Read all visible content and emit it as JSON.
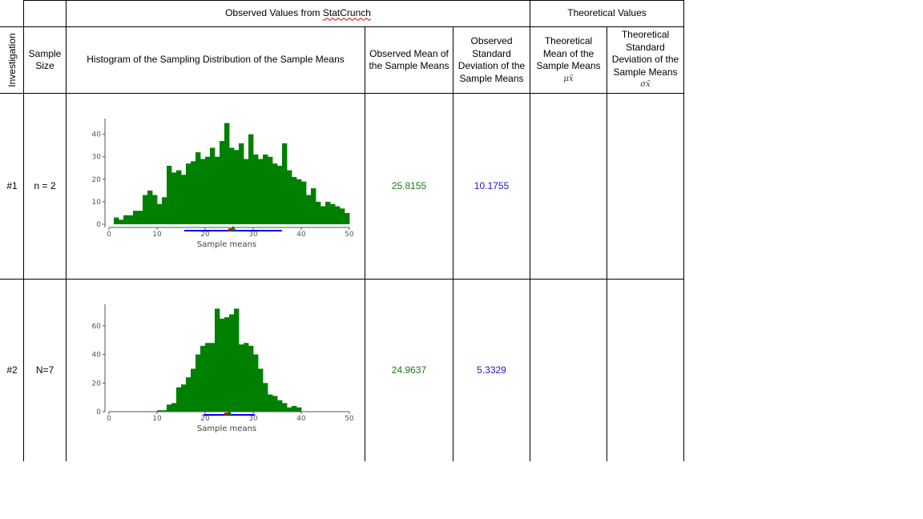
{
  "header": {
    "observed_group": "Observed Values from StatCrunch",
    "observed_group_pre": "Observed Values from ",
    "observed_group_word": "StatCrunch",
    "theoretical_group": "Theoretical Values"
  },
  "columns": {
    "investigation": "Investigation",
    "sample_size": "Sample Size",
    "histogram": "Histogram of the Sampling Distribution of the Sample Means",
    "observed_mean": "Observed Mean of the Sample Means",
    "observed_sd": "Observed Standard Deviation of the Sample Means",
    "theoretical_mean": "Theoretical Mean of the Sample Means",
    "theoretical_mean_symbol": "μx̄",
    "theoretical_sd": "Theoretical Standard Deviation of the Sample Means",
    "theoretical_sd_symbol": "σx̄"
  },
  "rows": [
    {
      "investigation": "#1",
      "sample_size": "n = 2",
      "observed_mean": "25.8155",
      "observed_sd": "10.1755",
      "theoretical_mean": "",
      "theoretical_sd": ""
    },
    {
      "investigation": "#2",
      "sample_size": "N=7",
      "observed_mean": "24.9637",
      "observed_sd": "5.3329",
      "theoretical_mean": "",
      "theoretical_sd": ""
    }
  ],
  "colors": {
    "bar": "#008000",
    "mean_text": "#1a7a1a",
    "sd_text": "#1a1ac8",
    "interval_line": "#0000ff",
    "mean_marker": "#008000",
    "median_marker": "#cc0000"
  },
  "chart_data": [
    {
      "type": "bar",
      "xlabel": "Sample means",
      "ylabel": "",
      "xlim": [
        0,
        50
      ],
      "ylim": [
        0,
        47
      ],
      "xticks": [
        0,
        10,
        20,
        30,
        40,
        50
      ],
      "yticks": [
        0,
        10,
        20,
        30,
        40
      ],
      "bin_start": 1,
      "bin_width": 1,
      "values": [
        3,
        2,
        4,
        4,
        6,
        6,
        13,
        15,
        13,
        9,
        12,
        26,
        23,
        24,
        22,
        27,
        28,
        32,
        29,
        30,
        34,
        30,
        37,
        45,
        34,
        33,
        36,
        29,
        40,
        31,
        29,
        31,
        30,
        27,
        26,
        36,
        24,
        21,
        20,
        19,
        13,
        16,
        10,
        8,
        10,
        9,
        8,
        7,
        5
      ],
      "mean": 25.8155,
      "interval": [
        15.64,
        35.99
      ]
    },
    {
      "type": "bar",
      "xlabel": "Sample means",
      "ylabel": "",
      "xlim": [
        0,
        50
      ],
      "ylim": [
        0,
        75
      ],
      "xticks": [
        0,
        10,
        20,
        30,
        40,
        50
      ],
      "yticks": [
        0,
        20,
        40,
        60
      ],
      "bin_start": 10,
      "bin_width": 1,
      "values": [
        1,
        1,
        5,
        6,
        17,
        19,
        24,
        30,
        40,
        46,
        48,
        48,
        72,
        65,
        66,
        68,
        72,
        47,
        48,
        46,
        40,
        30,
        20,
        12,
        11,
        8,
        6,
        3,
        4,
        3
      ],
      "mean": 24.9637,
      "interval": [
        19.63,
        30.3
      ]
    }
  ]
}
